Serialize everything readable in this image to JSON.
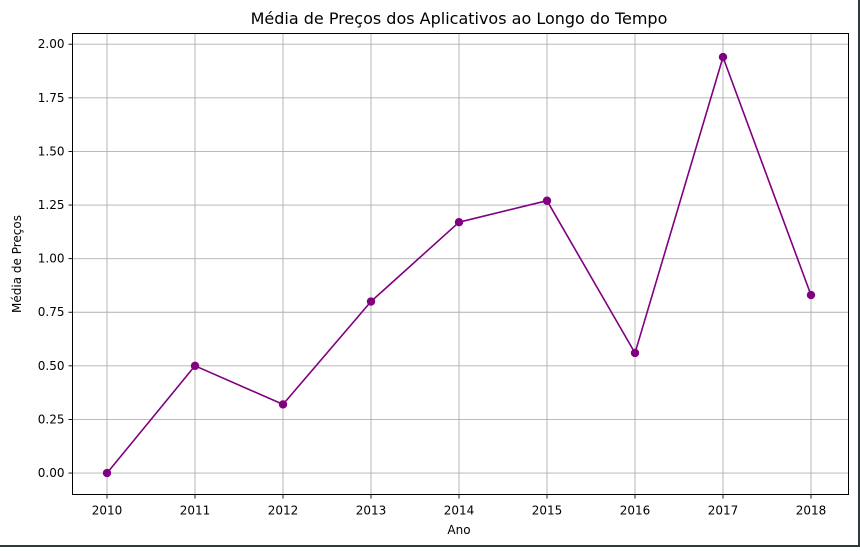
{
  "chart_data": {
    "type": "line",
    "title": "Média de Preços dos Aplicativos ao Longo do Tempo",
    "xlabel": "Ano",
    "ylabel": "Média de Preços",
    "categories": [
      "2010",
      "2011",
      "2012",
      "2013",
      "2014",
      "2015",
      "2016",
      "2017",
      "2018"
    ],
    "values": [
      0.0,
      0.5,
      0.32,
      0.8,
      1.17,
      1.27,
      0.56,
      1.94,
      0.83
    ],
    "ylim": [
      -0.1,
      2.05
    ],
    "yticks": [
      "0.00",
      "0.25",
      "0.50",
      "0.75",
      "1.00",
      "1.25",
      "1.50",
      "1.75",
      "2.00"
    ],
    "grid": true,
    "color": "#800080",
    "marker": "circle"
  }
}
